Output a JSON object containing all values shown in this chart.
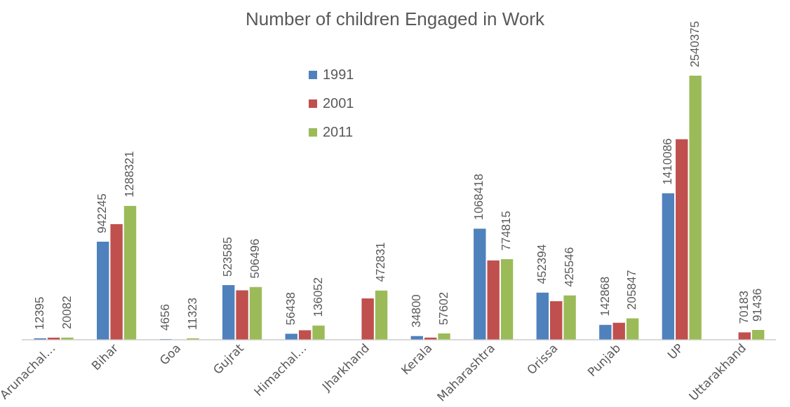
{
  "chart_data": {
    "type": "bar",
    "title": "Number of children Engaged in Work",
    "categories": [
      "Arunachal…",
      "Bihar",
      "Goa",
      "Gujrat",
      "Himachal…",
      "Jharkhand",
      "Kerala",
      "Maharashtra",
      "Orissa",
      "Punjab",
      "UP",
      "Uttarakhand"
    ],
    "series": [
      {
        "name": "1991",
        "color": "#4f81bd",
        "values": [
          12395,
          942245,
          4656,
          523585,
          56438,
          null,
          34800,
          1068418,
          452394,
          142868,
          1410086,
          null
        ],
        "value_labels": [
          "12395",
          "942245",
          "4656",
          "523585",
          "56438",
          null,
          "34800",
          "1068418",
          "452394",
          "142868",
          "1410086",
          null
        ]
      },
      {
        "name": "2001",
        "color": "#c0504d",
        "values": [
          18000,
          1110000,
          null,
          475000,
          91000,
          396000,
          20000,
          764000,
          368000,
          163000,
          1930000,
          70183
        ],
        "value_labels": [
          null,
          null,
          null,
          null,
          null,
          null,
          null,
          null,
          null,
          null,
          null,
          "70183"
        ]
      },
      {
        "name": "2011",
        "color": "#9bbb59",
        "values": [
          20082,
          1288321,
          11323,
          506496,
          136052,
          472831,
          57602,
          774815,
          425546,
          205847,
          2540375,
          91436
        ],
        "value_labels": [
          "20082",
          "1288321",
          "11323",
          "506496",
          "136052",
          "472831",
          "57602",
          "774815",
          "425546",
          "205847",
          "2540375",
          "91436"
        ]
      }
    ],
    "legend": "top",
    "grid": false
  }
}
